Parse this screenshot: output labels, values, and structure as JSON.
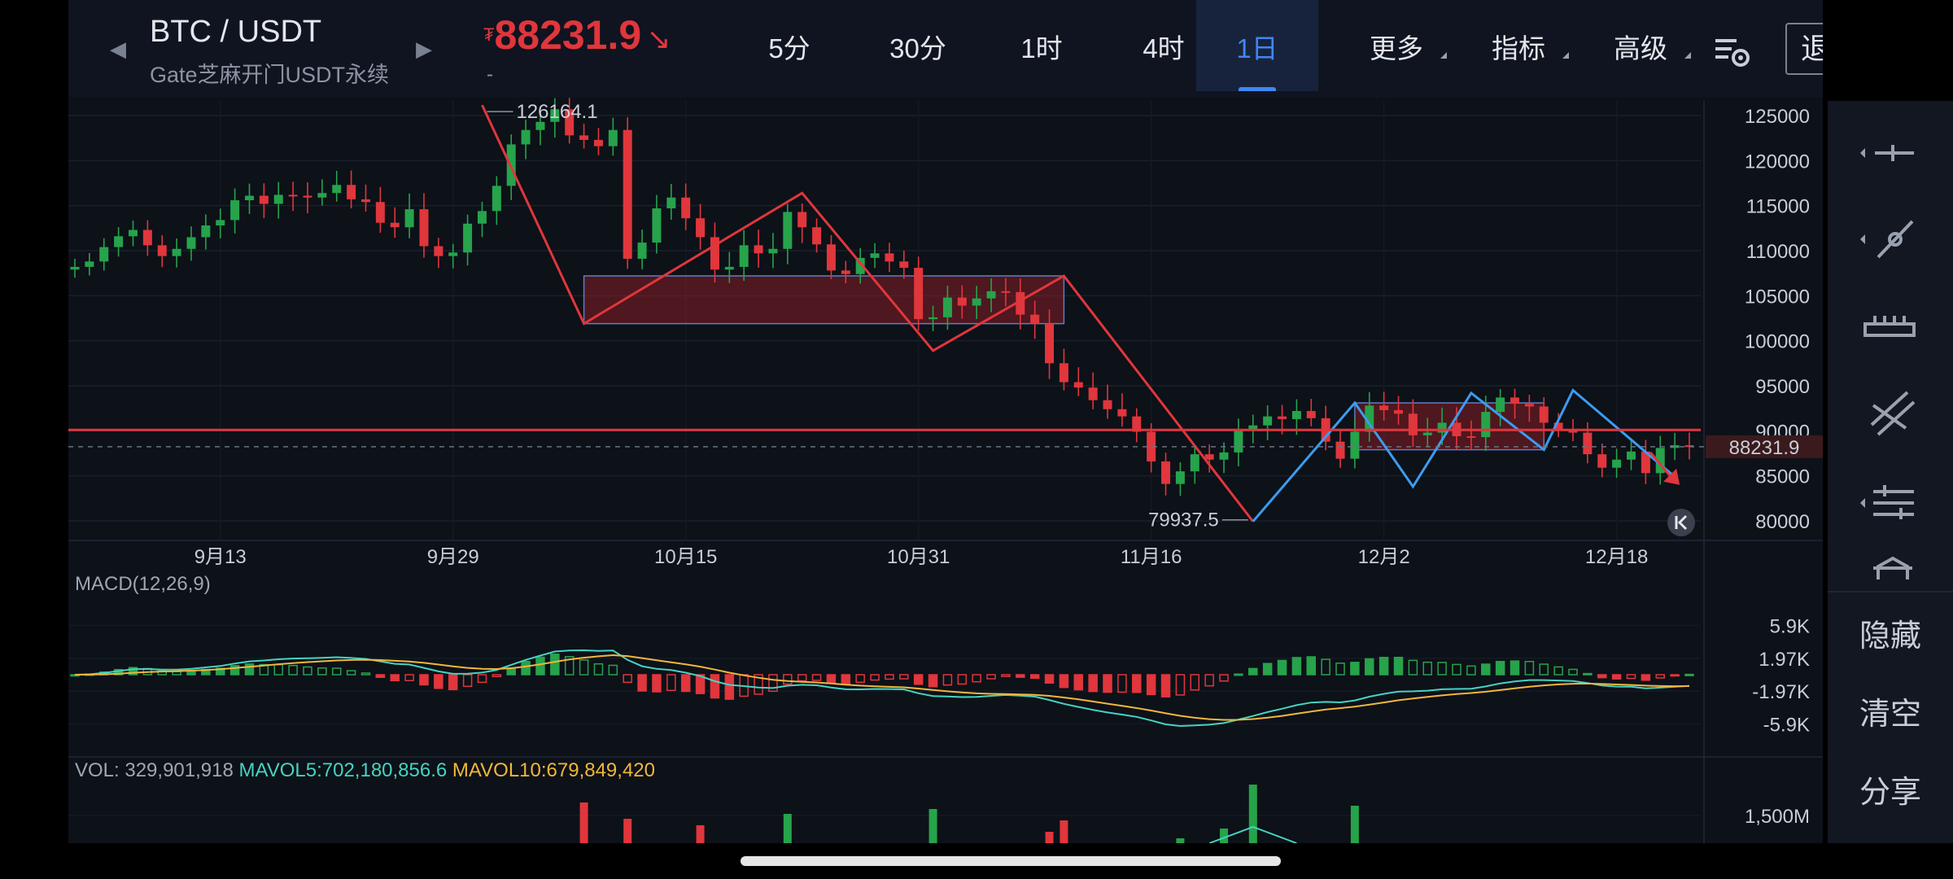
{
  "header": {
    "pair": "BTC / USDT",
    "subtitle": "Gate芝麻开门USDT永续",
    "price_currency": "₮",
    "price": "88231.9",
    "price_sub": "-",
    "prev_arrow": "◀",
    "next_arrow": "▶"
  },
  "timeframes": [
    {
      "label": "5分",
      "active": false
    },
    {
      "label": "30分",
      "active": false
    },
    {
      "label": "1时",
      "active": false
    },
    {
      "label": "4时",
      "active": false
    },
    {
      "label": "1日",
      "active": true
    },
    {
      "label": "更多",
      "active": false
    },
    {
      "label": "指标",
      "active": false
    },
    {
      "label": "高级",
      "active": false
    }
  ],
  "exit_button": "退出画线",
  "side_tools": [
    "horizontal-line-icon",
    "trend-line-icon",
    "ruler-icon",
    "parallel-lines-icon",
    "fibonacci-icon",
    "brush-icon"
  ],
  "side_actions": {
    "hide": "隐藏",
    "clear": "清空",
    "share": "分享"
  },
  "chart_data": {
    "type": "candlestick",
    "price_axis_ticks": [
      "125000",
      "120000",
      "115000",
      "110000",
      "105000",
      "100000",
      "95000",
      "90000",
      "85000",
      "80000"
    ],
    "ylim": [
      77500,
      127500
    ],
    "date_ticks": [
      "9月13",
      "9月29",
      "10月15",
      "10月31",
      "11月16",
      "12月2",
      "12月18"
    ],
    "high_label": "126164.1",
    "low_label": "79937.5",
    "current_price_tag": "88231.9",
    "current_price": 88231.9,
    "horizontal_line": 90100,
    "colors": {
      "up": "#26a34b",
      "down": "#e0363c",
      "red_draw": "#e0363c",
      "blue_draw": "#3b9cf0"
    },
    "candles_close": [
      108200,
      108800,
      110400,
      111600,
      112300,
      110600,
      109400,
      110200,
      111500,
      112800,
      113400,
      115600,
      116100,
      115200,
      116200,
      116100,
      115900,
      116400,
      117300,
      115700,
      115400,
      113100,
      112600,
      114600,
      110500,
      109400,
      109800,
      113000,
      114400,
      117200,
      121800,
      123400,
      124300,
      125700,
      122800,
      122300,
      121600,
      123400,
      109100,
      110900,
      114700,
      115900,
      113600,
      111500,
      107900,
      108200,
      110600,
      109700,
      110200,
      114300,
      112600,
      110700,
      107800,
      107400,
      109200,
      109700,
      108800,
      108100,
      102400,
      102600,
      104800,
      103900,
      104700,
      105500,
      105400,
      102900,
      101900,
      97500,
      95400,
      94800,
      93400,
      92400,
      91600,
      89900,
      86600,
      84100,
      85500,
      87400,
      86800,
      87600,
      90200,
      90600,
      91600,
      91300,
      92200,
      91400,
      88800,
      86900,
      89900,
      92800,
      92300,
      91900,
      89500,
      89800,
      90900,
      89400,
      89300,
      92100,
      93700,
      93000,
      92700,
      90900,
      90200,
      89800,
      87400,
      85900,
      86800,
      87700,
      85300,
      88100,
      88400,
      88200
    ],
    "annotations": [
      {
        "type": "zigzag-red",
        "points": [
          [
            28,
            126164
          ],
          [
            35,
            101900
          ],
          [
            50,
            116400
          ],
          [
            59,
            98900
          ],
          [
            68,
            107200
          ],
          [
            81,
            79937
          ]
        ]
      },
      {
        "type": "zigzag-blue",
        "points": [
          [
            81,
            79937
          ],
          [
            88,
            93100
          ],
          [
            92,
            83800
          ],
          [
            96,
            94200
          ],
          [
            101,
            87900
          ],
          [
            103,
            94500
          ],
          [
            110,
            84900
          ]
        ]
      },
      {
        "type": "box-red",
        "from": [
          35,
          107200
        ],
        "to": [
          68,
          101900
        ]
      },
      {
        "type": "box-red",
        "from": [
          88,
          93100
        ],
        "to": [
          101,
          87900
        ]
      }
    ],
    "macd": {
      "label": "MACD(12,26,9)",
      "ticks": [
        "5.9K",
        "1.97K",
        "-1.97K",
        "-5.9K"
      ],
      "ylim": [
        -7900,
        7900
      ],
      "colors": {
        "dif": "#46d3c2",
        "dea": "#f0b73c"
      }
    },
    "volume": {
      "label": "VOL: 329,901,918",
      "mavol5": "MAVOL5:702,180,856.6",
      "mavol10": "MAVOL10:679,849,420",
      "tick": "1,500M",
      "colors": {
        "mavol5": "#46d3c2",
        "mavol10": "#f0b73c"
      }
    }
  }
}
